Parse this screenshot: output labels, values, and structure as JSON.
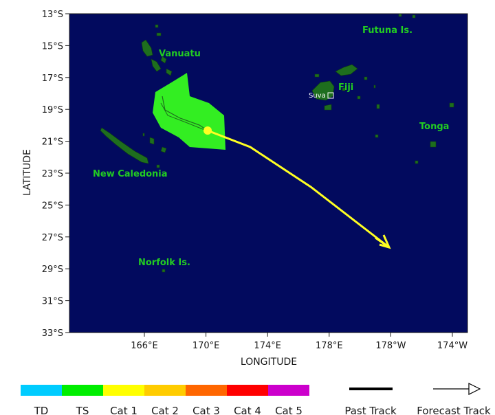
{
  "map": {
    "ocean_color": "#020a5e",
    "land_color": "#1e6e1e",
    "x_axis_title": "LONGITUDE",
    "y_axis_title": "LATITUDE",
    "lat_ticks": [
      "13°S",
      "15°S",
      "17°S",
      "19°S",
      "21°S",
      "23°S",
      "25°S",
      "27°S",
      "29°S",
      "31°S",
      "33°S"
    ],
    "lon_ticks": [
      "166°E",
      "170°E",
      "174°E",
      "178°E",
      "178°W",
      "174°W"
    ],
    "places": [
      {
        "name": "Futuna Is."
      },
      {
        "name": "Vanuatu"
      },
      {
        "name": "Fiji"
      },
      {
        "name": "Tonga"
      },
      {
        "name": "New Caledonia"
      },
      {
        "name": "Norfolk Is."
      }
    ],
    "city": {
      "name": "Suva"
    },
    "wind_field_color": "#33ee22",
    "track_color": "#ffff22"
  },
  "legend": {
    "categories": [
      {
        "label": "TD",
        "color": "#00ccff"
      },
      {
        "label": "TS",
        "color": "#00ee00"
      },
      {
        "label": "Cat 1",
        "color": "#ffff00"
      },
      {
        "label": "Cat 2",
        "color": "#ffcc00"
      },
      {
        "label": "Cat 3",
        "color": "#ff6600"
      },
      {
        "label": "Cat 4",
        "color": "#ff0000"
      },
      {
        "label": "Cat 5",
        "color": "#cc00cc"
      }
    ],
    "past_track_label": "Past Track",
    "forecast_track_label": "Forecast Track"
  }
}
